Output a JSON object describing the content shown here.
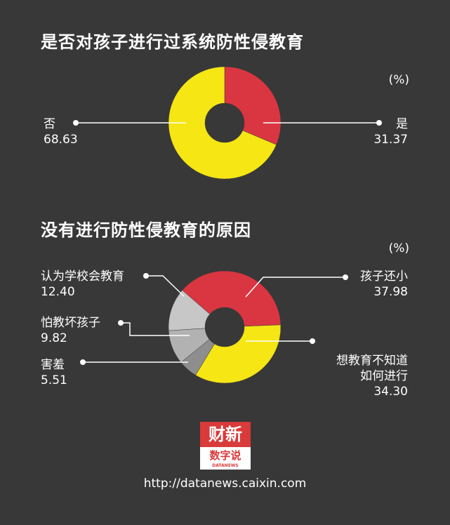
{
  "header": {
    "chart1_title": "是否对孩子进行过系统防性侵教育",
    "chart2_title": "没有进行防性侵教育的原因",
    "unit": "(%)"
  },
  "chart_data": [
    {
      "type": "pie",
      "title": "是否对孩子进行过系统防性侵教育",
      "unit": "(%)",
      "categories": [
        "是",
        "否"
      ],
      "values": [
        31.37,
        68.63
      ],
      "value_labels": [
        "31.37",
        "68.63"
      ],
      "colors": [
        "#d93641",
        "#f5e614"
      ]
    },
    {
      "type": "pie",
      "title": "没有进行防性侵教育的原因",
      "unit": "(%)",
      "categories": [
        "孩子还小",
        "想教育不知道\n如何进行",
        "害羞",
        "怕教坏孩子",
        "认为学校会教育"
      ],
      "values": [
        37.98,
        34.3,
        5.51,
        9.82,
        12.4
      ],
      "value_labels": [
        "37.98",
        "34.30",
        "5.51",
        "9.82",
        "12.40"
      ],
      "colors": [
        "#d93641",
        "#f5e614",
        "#8e8e8e",
        "#b2b2b2",
        "#c7c7c7"
      ]
    }
  ],
  "logo": {
    "line1": "财新",
    "line2": "数字说",
    "line3": "DATANEWS"
  },
  "footer": {
    "url": "http://datanews.caixin.com"
  }
}
